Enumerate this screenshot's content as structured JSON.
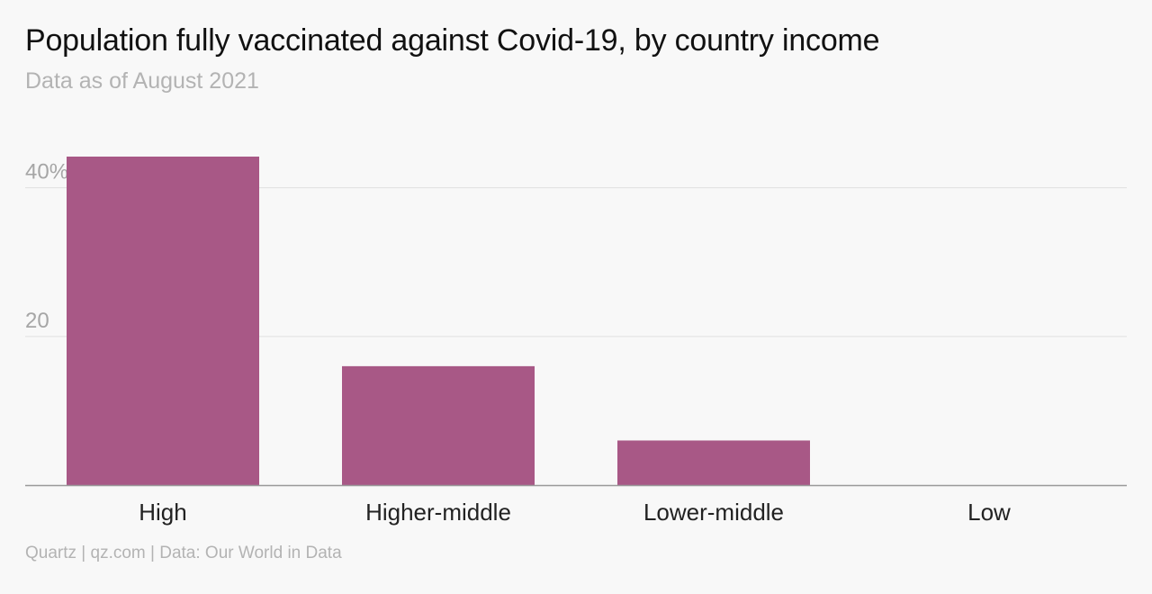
{
  "title": "Population fully vaccinated against Covid-19, by country income",
  "subtitle": "Data as of August 2021",
  "footer": "Quartz | qz.com | Data: Our World in Data",
  "colors": {
    "bar": "#a85886",
    "grid": "#e0e0e0",
    "axis": "#9a9a9a"
  },
  "chart_data": {
    "type": "bar",
    "title": "Population fully vaccinated against Covid-19, by country income",
    "subtitle": "Data as of August 2021",
    "xlabel": "",
    "ylabel": "",
    "categories": [
      "High",
      "Higher-middle",
      "Lower-middle",
      "Low"
    ],
    "values": [
      44.2,
      16.0,
      6.0,
      0.0
    ],
    "ylim": [
      0,
      44.2
    ],
    "yticks": [
      20,
      40
    ],
    "ytick_labels": [
      "20",
      "40%"
    ],
    "grid": true,
    "legend": "none"
  }
}
